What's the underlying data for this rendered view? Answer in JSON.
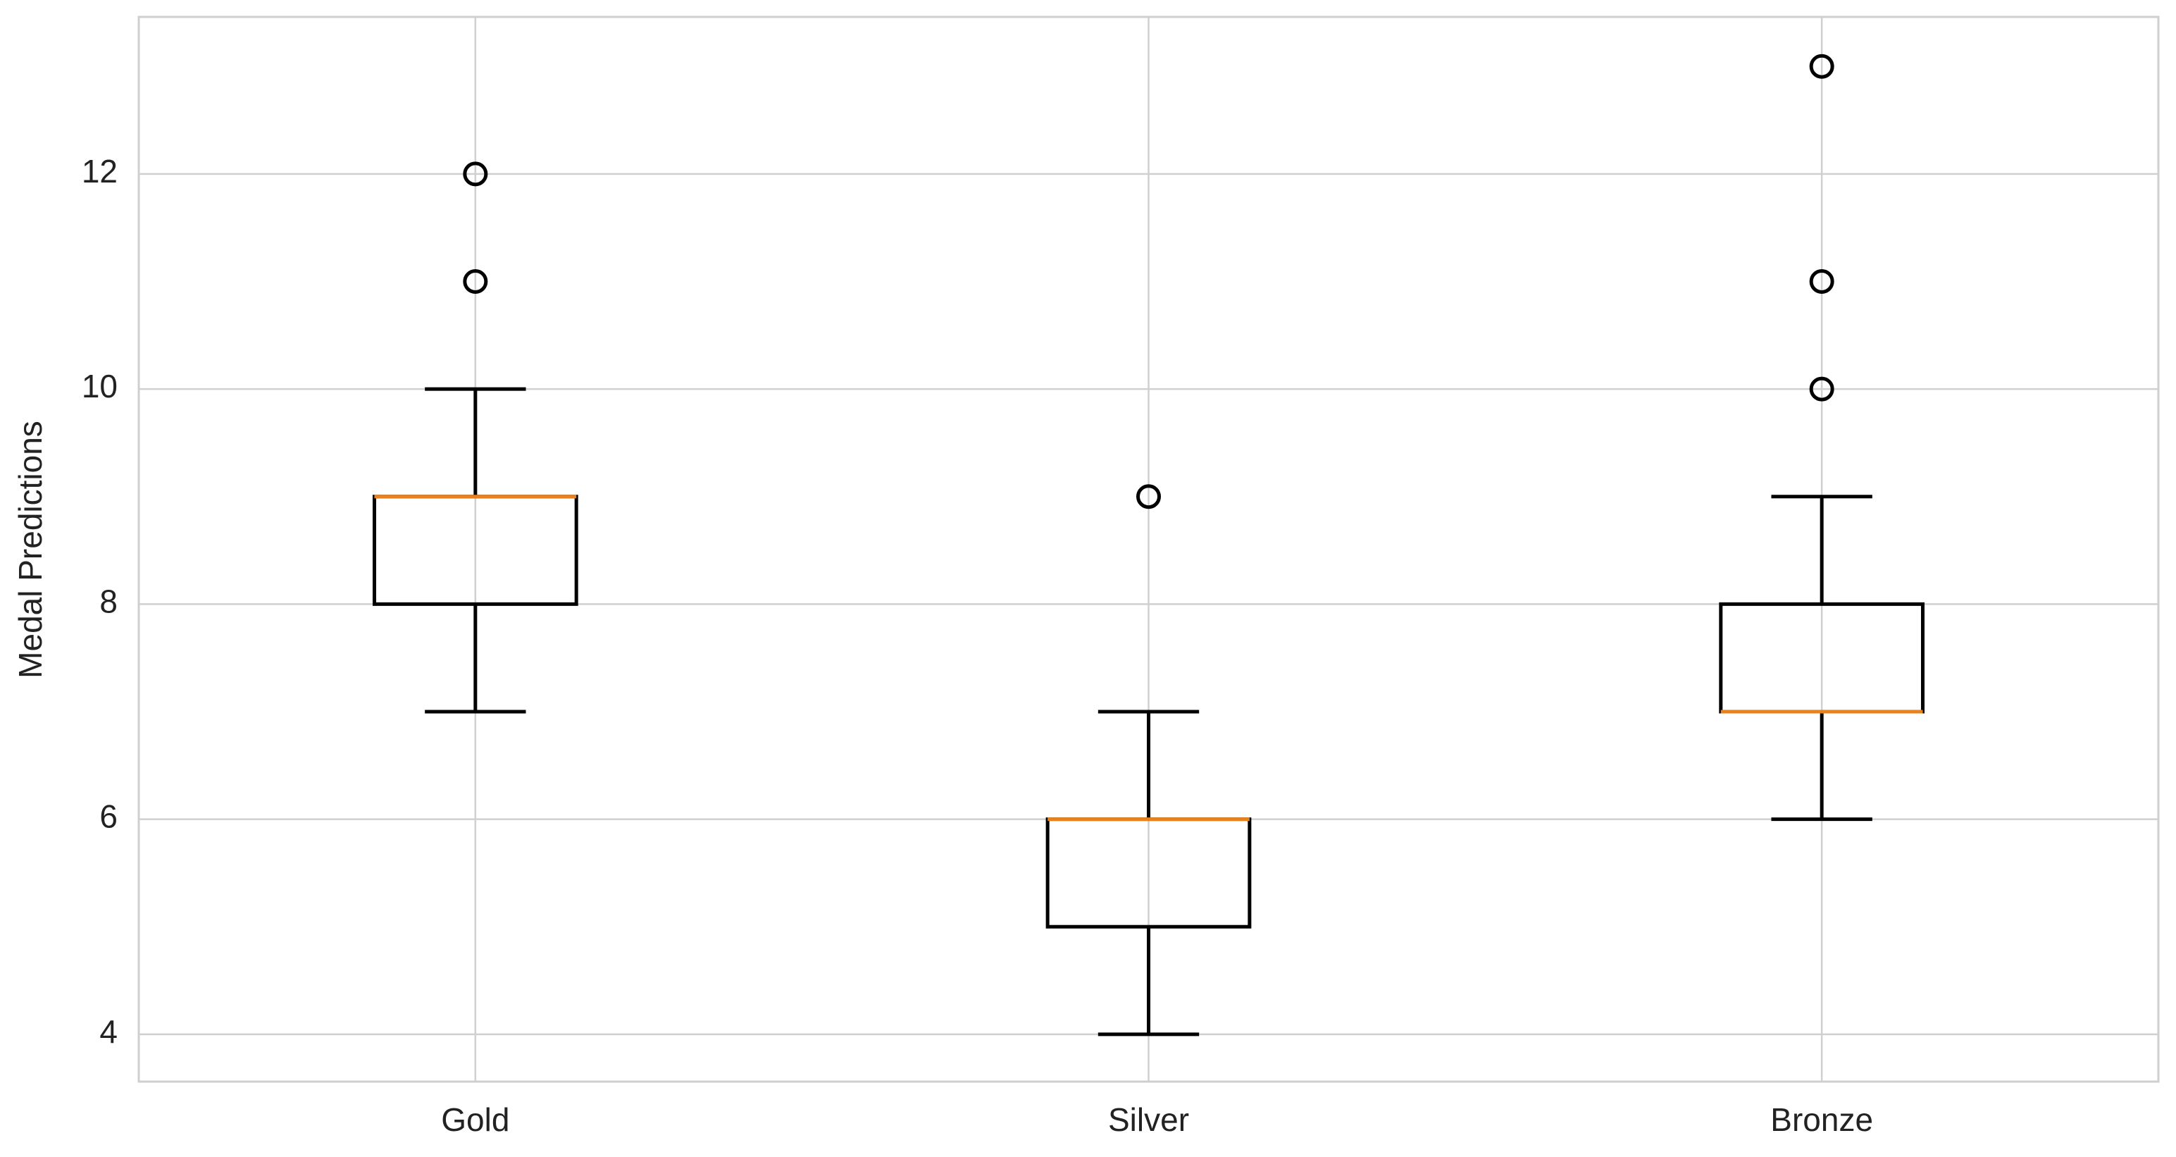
{
  "chart_data": {
    "type": "box",
    "y_label": "Medal Predictions",
    "categories": [
      "Gold",
      "Silver",
      "Bronze"
    ],
    "boxes": [
      {
        "whislo": 7,
        "q1": 8,
        "median": 9,
        "q3": 9,
        "whishi": 10,
        "fliers": [
          11,
          12
        ]
      },
      {
        "whislo": 4,
        "q1": 5,
        "median": 6,
        "q3": 6,
        "whishi": 7,
        "fliers": [
          9
        ]
      },
      {
        "whislo": 6,
        "q1": 7,
        "median": 7,
        "q3": 8,
        "whishi": 9,
        "fliers": [
          10,
          11,
          13
        ]
      }
    ],
    "box_color": "#000000",
    "median_color": "#e8821e",
    "ylim": [
      3.56,
      13.46
    ],
    "yticks": [
      4,
      6,
      8,
      10,
      12
    ],
    "grid": true
  }
}
